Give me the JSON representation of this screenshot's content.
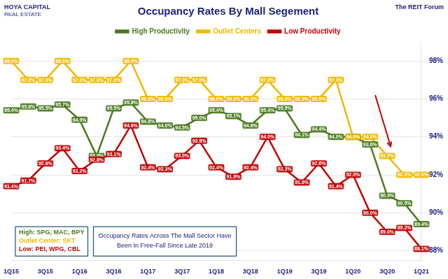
{
  "chart_data": {
    "type": "line",
    "title": "Occupancy Rates By Mall Segement",
    "categories": [
      "1Q15",
      null,
      "3Q15",
      null,
      "1Q16",
      null,
      "3Q16",
      null,
      "1Q17",
      null,
      "3Q17",
      null,
      "1Q18",
      null,
      "3Q18",
      null,
      "1Q19",
      null,
      "3Q19",
      null,
      "1Q20",
      null,
      "3Q20",
      null,
      "1Q21"
    ],
    "series": [
      {
        "name": "High Productivity",
        "color": "#4a7a1e",
        "values": [
          95.4,
          95.6,
          95.5,
          95.7,
          94.9,
          93.0,
          95.5,
          95.8,
          94.8,
          94.6,
          94.5,
          95.0,
          95.4,
          95.1,
          94.6,
          95.4,
          95.5,
          94.1,
          94.4,
          94.0,
          94.0,
          93.6,
          90.9,
          90.5,
          89.4
        ],
        "value_labels": [
          "95.4%",
          "95.6%",
          "95.5%",
          "95.7%",
          "94.9%",
          "93.0%",
          "95.5%",
          "95.8%",
          "94.8%",
          "94.6%",
          "94.5%",
          "95.0%",
          "95.4%",
          "95.1%",
          "94.6%",
          "95.4%",
          "95.5%",
          "94.1%",
          "94.4%",
          "94.0%",
          "94.0%",
          "93.6%",
          "90.9%",
          "90.5%",
          "89.4%"
        ]
      },
      {
        "name": "Outlet Centers",
        "color": "#f0b800",
        "values": [
          98.0,
          97.0,
          97.0,
          98.0,
          97.0,
          97.0,
          97.0,
          98.0,
          96.0,
          96.0,
          97.0,
          97.0,
          96.0,
          96.0,
          96.0,
          97.0,
          96.0,
          96.0,
          96.0,
          97.0,
          94.0,
          94.0,
          93.0,
          92.0,
          92.0
        ],
        "value_labels": [
          "98.0%",
          "97.0%",
          "97.0%",
          "98.0%",
          "97.0%",
          "97.0%",
          "97.0%",
          "98.0%",
          "96.0%",
          "96.0%",
          "97.0%",
          "97.0%",
          "96.0%",
          "96.0%",
          "96.0%",
          "97.0%",
          "96.0%",
          "96.0%",
          "96.0%",
          "97.0%",
          "94.0%",
          "94.0%",
          "93.0%",
          "92.0%",
          "92.0%"
        ]
      },
      {
        "name": "Low Productivity",
        "color": "#c00000",
        "values": [
          91.4,
          91.7,
          92.6,
          93.4,
          92.2,
          92.8,
          93.1,
          94.6,
          92.4,
          92.3,
          93.0,
          93.8,
          92.4,
          91.9,
          92.4,
          94.0,
          92.3,
          91.6,
          92.6,
          91.4,
          92.0,
          90.0,
          89.0,
          89.2,
          88.1
        ],
        "value_labels": [
          "91.4%",
          "91.7%",
          "92.6%",
          "93.4%",
          "92.2%",
          "92.8%",
          "93.1%",
          "94.6%",
          "92.4%",
          "92.3%",
          "93.0%",
          "93.8%",
          "92.4%",
          "91.9%",
          "92.4%",
          "94.0%",
          "92.3%",
          "91.6%",
          "92.6%",
          "91.4%",
          "92.0%",
          "90.0%",
          "89.0%",
          "89.2%",
          "88.1%"
        ]
      }
    ],
    "ylim": [
      87.5,
      99.0
    ],
    "yticks": [
      {
        "value": 88,
        "label": "88%"
      },
      {
        "value": 90,
        "label": "90%"
      },
      {
        "value": 92,
        "label": "92%"
      },
      {
        "value": 94,
        "label": "94%"
      },
      {
        "value": 96,
        "label": "96%"
      },
      {
        "value": 98,
        "label": "98%"
      }
    ],
    "grid": true,
    "legend": "top",
    "data_labels": true,
    "annotations": [
      {
        "text": "High: SPG, MAC, BPY",
        "color": "#4a7a1e"
      },
      {
        "text": "Outlet Center: SKT",
        "color": "#f0b800"
      },
      {
        "text": "Low: PEI, WPG, CBL",
        "color": "#c00000"
      },
      {
        "text": "Occupancy Rates Across The Mall Sector Have\nBeen In Free-Fall Since Late 2019"
      },
      {
        "text": "HOYA CAPITAL"
      },
      {
        "text": "REAL ESTATE"
      },
      {
        "text": "The REIT Forum"
      },
      {
        "type": "arrow",
        "color": "#c00000",
        "from": [
          21.3,
          96.2
        ],
        "to": [
          22.2,
          93.5
        ]
      }
    ]
  }
}
